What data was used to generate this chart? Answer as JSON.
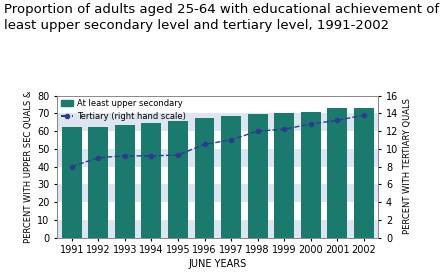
{
  "title": "Proportion of adults aged 25-64 with educational achievement of at\nleast upper secondary level and tertiary level, 1991-2002",
  "years": [
    1991,
    1992,
    1993,
    1994,
    1995,
    1996,
    1997,
    1998,
    1999,
    2000,
    2001,
    2002
  ],
  "bar_values": [
    62.5,
    62.5,
    63.5,
    64.5,
    65.5,
    67.5,
    68.5,
    69.5,
    70.0,
    71.0,
    73.0,
    73.0
  ],
  "line_values": [
    8.0,
    9.0,
    9.2,
    9.2,
    9.3,
    10.5,
    11.0,
    12.0,
    12.2,
    12.8,
    13.2,
    13.8
  ],
  "bar_color": "#1a7a6e",
  "line_color": "#2e3a8e",
  "bg_stripe_light": "#dde5f0",
  "bg_stripe_dark": "#c8d4e8",
  "bg_outer": "#e8eef7",
  "ylabel_left": "PERCENT WITH UPPER SEC QUALS &",
  "ylabel_right": "PERCENT WITH TERTIARY QUALS",
  "xlabel": "JUNE YEARS",
  "ylim_left": [
    0,
    80
  ],
  "ylim_right": [
    0,
    16
  ],
  "yticks_left": [
    0,
    10,
    20,
    30,
    40,
    50,
    60,
    70,
    80
  ],
  "yticks_right": [
    0,
    2,
    4,
    6,
    8,
    10,
    12,
    14,
    16
  ],
  "legend_bar": "At least upper secondary",
  "legend_line": "Tertiary (right hand scale)",
  "title_fontsize": 9.5,
  "tick_fontsize": 7,
  "label_fontsize": 6
}
